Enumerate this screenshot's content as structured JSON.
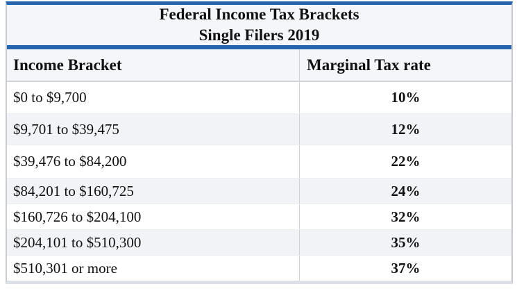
{
  "title": {
    "line1": "Federal Income Tax Brackets",
    "line2": "Single Filers 2019"
  },
  "columns": {
    "bracket": "Income Bracket",
    "rate": "Marginal Tax rate"
  },
  "rows": [
    {
      "bracket": "$0 to $9,700",
      "rate": "10%"
    },
    {
      "bracket": "$9,701 to $39,475",
      "rate": "12%"
    },
    {
      "bracket": "$39,476 to $84,200",
      "rate": "22%"
    },
    {
      "bracket": "$84,201 to $160,725",
      "rate": "24%"
    },
    {
      "bracket": "$160,726 to $204,100",
      "rate": "32%"
    },
    {
      "bracket": "$204,101 to $510,300",
      "rate": "35%"
    },
    {
      "bracket": "$510,301 or more",
      "rate": "37%"
    }
  ],
  "colors": {
    "accent_blue": "#2565b0",
    "header_bg": "#f5f6fa",
    "row_alt_bg": "#f2f3f6"
  }
}
